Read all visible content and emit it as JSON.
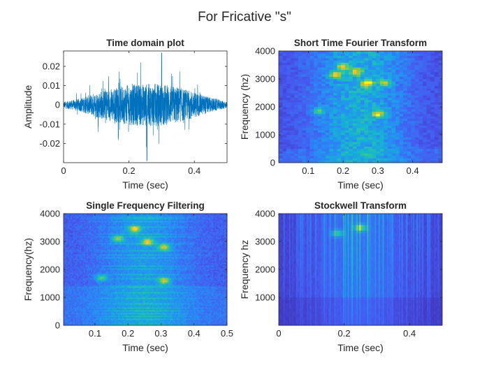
{
  "figure": {
    "title": "For Fricative \"s\""
  },
  "colors": {
    "signal": "#0072bd",
    "axis": "#262626",
    "cmap_low": "#3e26a8",
    "cmap_high": "#f9fb0e"
  },
  "chart_data": [
    {
      "type": "line",
      "title": "Time domain plot",
      "xlabel": "Time (sec)",
      "ylabel": "Amplitude",
      "xlim": [
        0,
        0.5
      ],
      "ylim": [
        -0.03,
        0.028
      ],
      "xticks": [
        0,
        0.2,
        0.4
      ],
      "xtick_labels": [
        "0",
        "0.2",
        "0.4"
      ],
      "yticks": [
        0.02,
        0.01,
        0,
        -0.01,
        -0.02
      ],
      "ytick_labels": [
        "0.02",
        "0.01",
        "0",
        "-0.01",
        "-0.02"
      ],
      "grid": false,
      "envelope": {
        "t": [
          0,
          0.05,
          0.1,
          0.15,
          0.2,
          0.25,
          0.3,
          0.35,
          0.4,
          0.45,
          0.5
        ],
        "amp": [
          0.003,
          0.006,
          0.012,
          0.016,
          0.019,
          0.02,
          0.02,
          0.017,
          0.012,
          0.007,
          0.003
        ]
      },
      "peaks": {
        "max": 0.027,
        "min": -0.029
      }
    },
    {
      "type": "heatmap",
      "title": "Short Time Fourier Transform",
      "xlabel": "Time (sec)",
      "ylabel": "Frequency (hz)",
      "xlim": [
        0.015,
        0.485
      ],
      "ylim": [
        0,
        4000
      ],
      "xticks": [
        0.1,
        0.2,
        0.3,
        0.4
      ],
      "xtick_labels": [
        "0.1",
        "0.2",
        "0.3",
        "0.4"
      ],
      "yticks": [
        4000,
        3000,
        2000,
        1000,
        0
      ],
      "ytick_labels": [
        "4000",
        "3000",
        "2000",
        "1000",
        "0"
      ],
      "time_bins": 42,
      "freq_bins": 48,
      "hot_spots": [
        {
          "t": 0.18,
          "f": 3150,
          "level": 1.0
        },
        {
          "t": 0.27,
          "f": 2850,
          "level": 0.95
        },
        {
          "t": 0.2,
          "f": 3450,
          "level": 0.8
        },
        {
          "t": 0.3,
          "f": 1750,
          "level": 0.85
        },
        {
          "t": 0.32,
          "f": 2850,
          "level": 0.75
        },
        {
          "t": 0.13,
          "f": 1850,
          "level": 0.6
        },
        {
          "t": 0.24,
          "f": 3250,
          "level": 0.7
        }
      ]
    },
    {
      "type": "heatmap",
      "title": "Single Frequency Filtering",
      "xlabel": "Time (sec)",
      "ylabel": "Frequency(hz)",
      "xlim": [
        0.005,
        0.5
      ],
      "ylim": [
        0,
        4000
      ],
      "xticks": [
        0.1,
        0.2,
        0.3,
        0.4,
        0.5
      ],
      "xtick_labels": [
        "0.1",
        "0.2",
        "0.3",
        "0.4",
        "0.5"
      ],
      "yticks": [
        4000,
        3000,
        2000,
        1000,
        0
      ],
      "ytick_labels": [
        "4000",
        "3000",
        "2000",
        "1000",
        "0"
      ],
      "time_bins": 120,
      "freq_bins": 80,
      "hot_spots": [
        {
          "t": 0.22,
          "f": 3450,
          "level": 0.9
        },
        {
          "t": 0.26,
          "f": 3000,
          "level": 0.85
        },
        {
          "t": 0.31,
          "f": 2800,
          "level": 0.8
        },
        {
          "t": 0.31,
          "f": 1600,
          "level": 0.8
        },
        {
          "t": 0.12,
          "f": 1700,
          "level": 0.6
        },
        {
          "t": 0.17,
          "f": 3100,
          "level": 0.7
        }
      ]
    },
    {
      "type": "heatmap",
      "title": "Stockwell Transform",
      "xlabel": "Time (sec)",
      "ylabel": "Frequency hz",
      "xlim": [
        0,
        0.5
      ],
      "ylim": [
        0,
        4000
      ],
      "xticks": [
        0,
        0.2,
        0.4
      ],
      "xtick_labels": [
        "0",
        "0.2",
        "0.4"
      ],
      "yticks": [
        4000,
        3000,
        2000,
        1000
      ],
      "ytick_labels": [
        "4000",
        "3000",
        "2000",
        "1000"
      ],
      "time_bins": 170,
      "freq_bins": 40,
      "hot_spots": [
        {
          "t": 0.25,
          "f": 3500,
          "level": 0.75
        },
        {
          "t": 0.18,
          "f": 3300,
          "level": 0.55
        }
      ]
    }
  ]
}
